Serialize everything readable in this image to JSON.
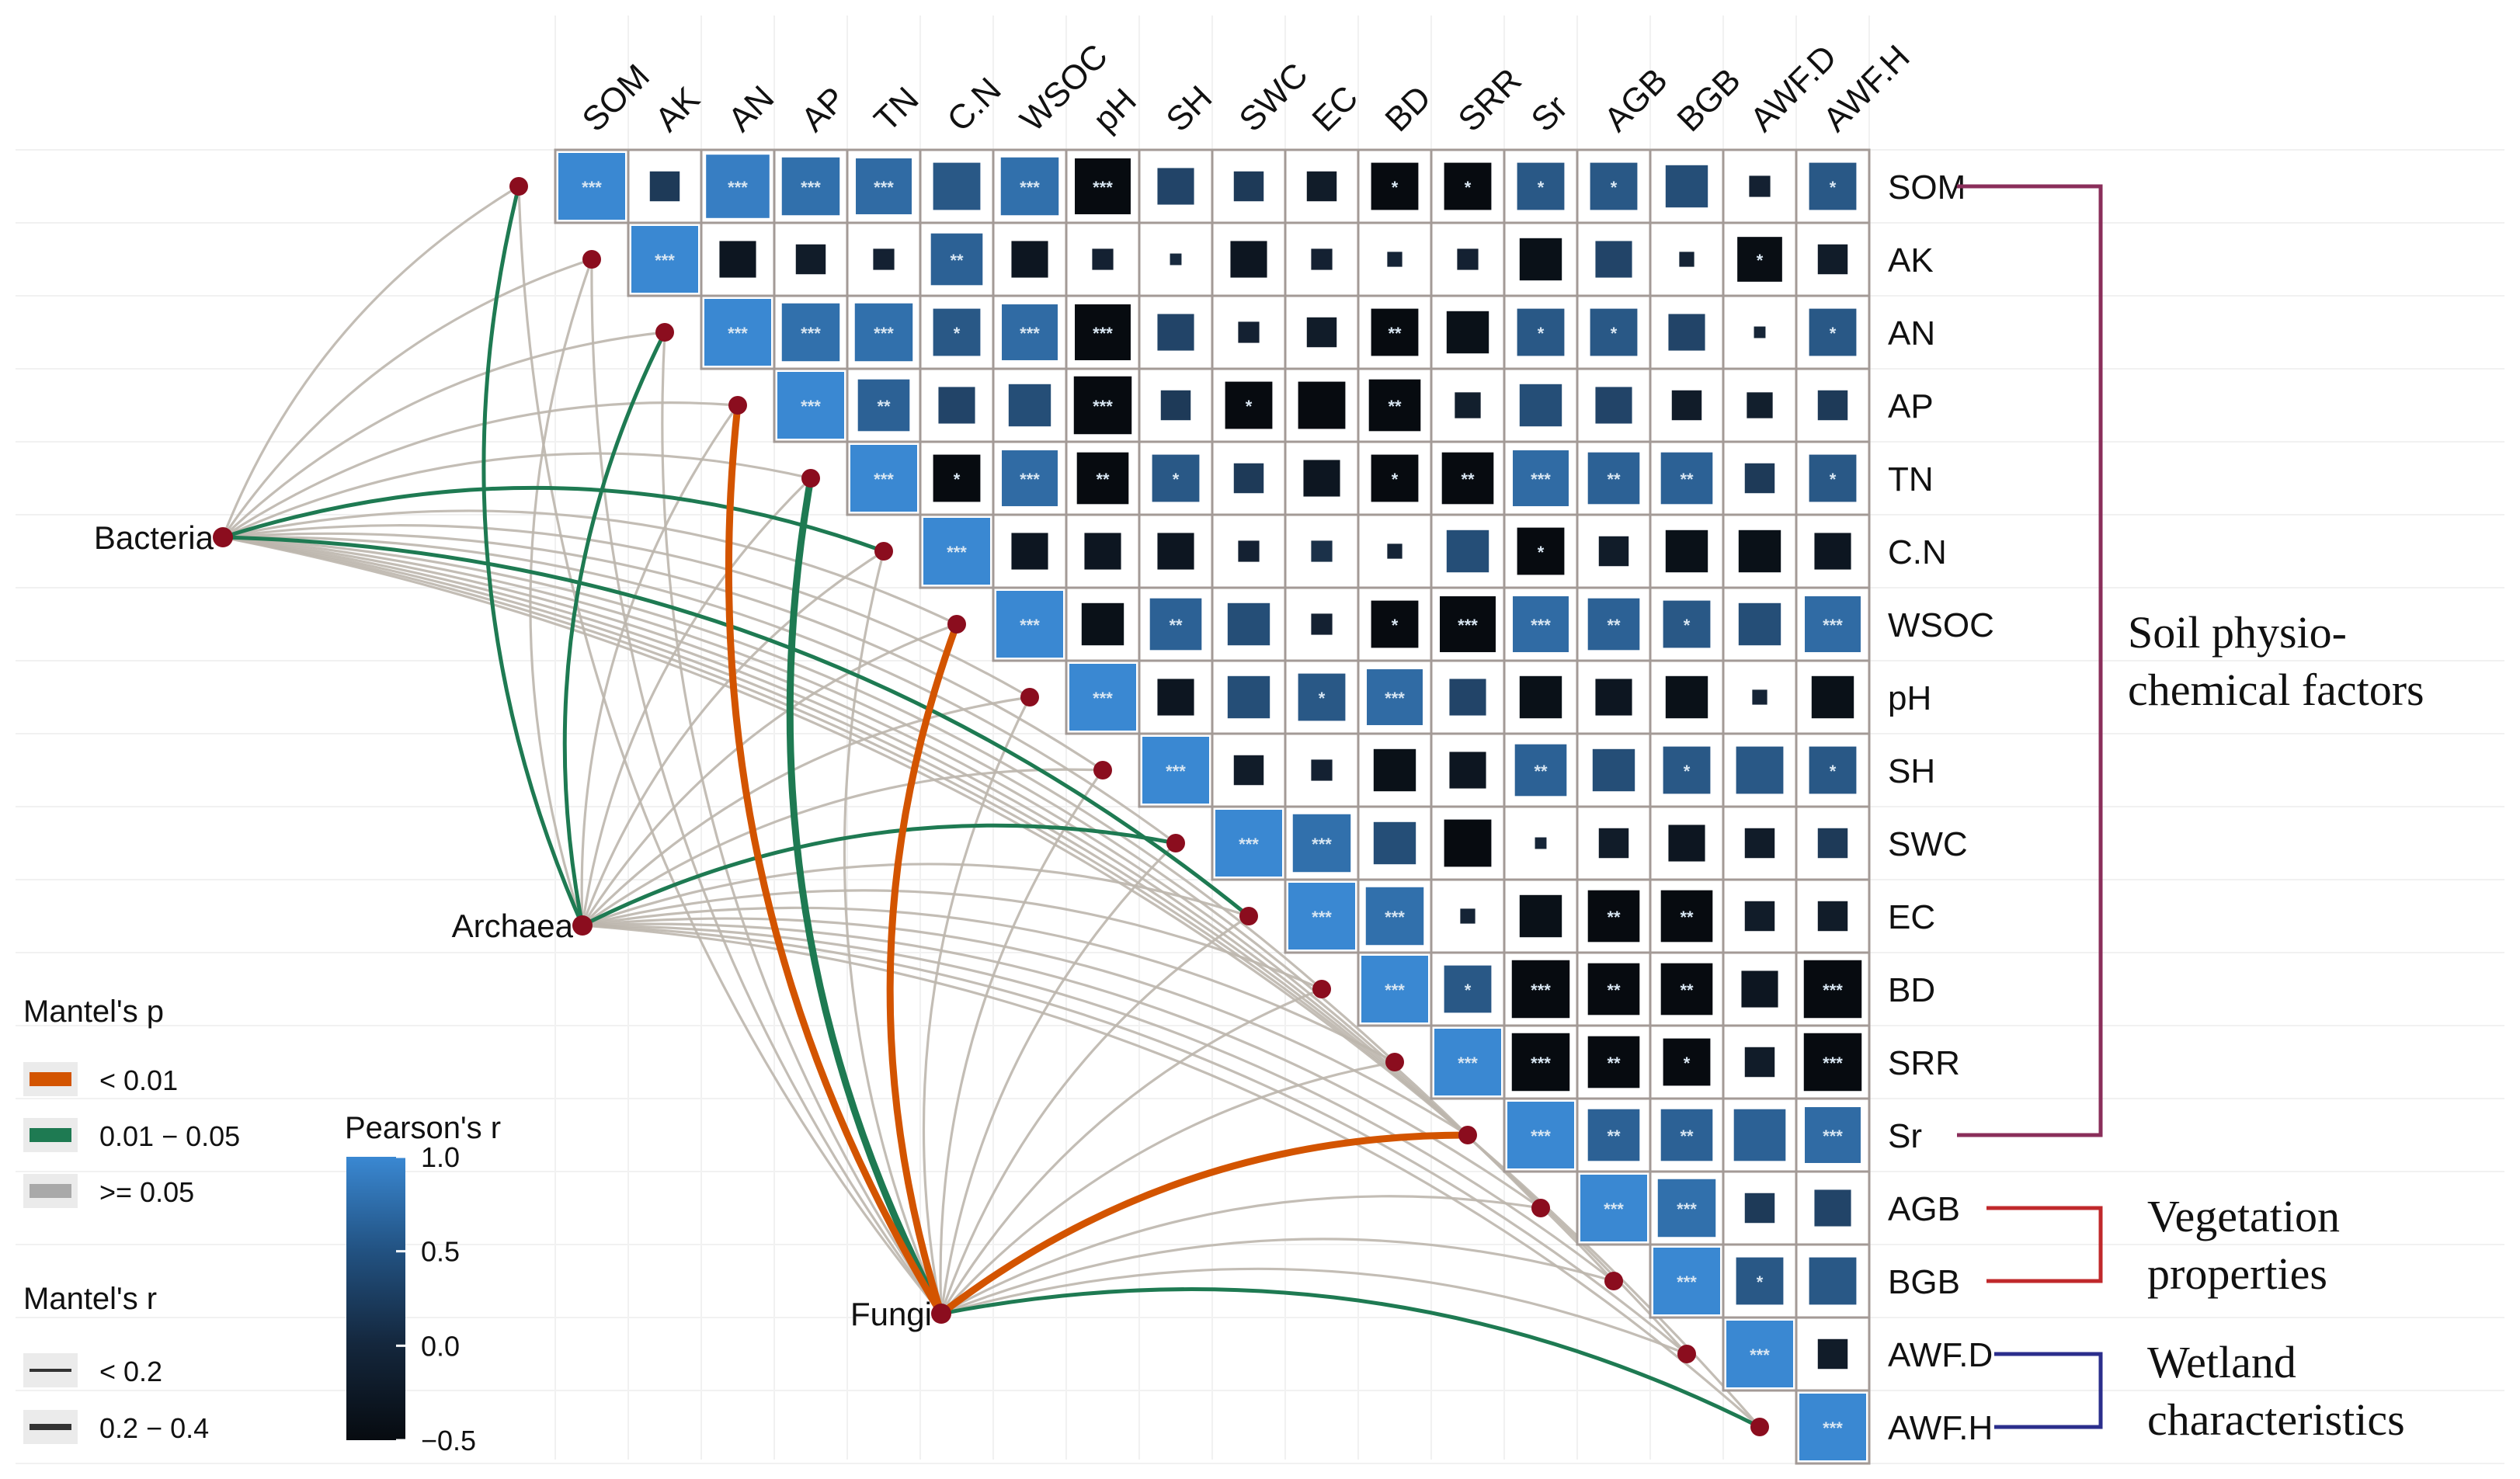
{
  "chart_data": {
    "type": "heatmap",
    "title": "",
    "variables": [
      "SOM",
      "AK",
      "AN",
      "AP",
      "TN",
      "C.N",
      "WSOC",
      "pH",
      "SH",
      "SWC",
      "EC",
      "BD",
      "SRR",
      "Sr",
      "AGB",
      "BGB",
      "AWF.D",
      "AWF.H"
    ],
    "cells": [
      {
        "row": "SOM",
        "col": "SOM",
        "r": 1.0,
        "sig": "***"
      },
      {
        "row": "SOM",
        "col": "AK",
        "r": 0.2,
        "sig": ""
      },
      {
        "row": "SOM",
        "col": "AN",
        "r": 0.9,
        "sig": "***"
      },
      {
        "row": "SOM",
        "col": "AP",
        "r": 0.75,
        "sig": "***"
      },
      {
        "row": "SOM",
        "col": "TN",
        "r": 0.7,
        "sig": "***"
      },
      {
        "row": "SOM",
        "col": "C.N",
        "r": 0.5,
        "sig": ""
      },
      {
        "row": "SOM",
        "col": "WSOC",
        "r": 0.75,
        "sig": "***"
      },
      {
        "row": "SOM",
        "col": "pH",
        "r": -0.7,
        "sig": "***"
      },
      {
        "row": "SOM",
        "col": "SH",
        "r": 0.3,
        "sig": ""
      },
      {
        "row": "SOM",
        "col": "SWC",
        "r": 0.2,
        "sig": ""
      },
      {
        "row": "SOM",
        "col": "EC",
        "r": -0.2,
        "sig": ""
      },
      {
        "row": "SOM",
        "col": "BD",
        "r": -0.5,
        "sig": "*"
      },
      {
        "row": "SOM",
        "col": "SRR",
        "r": -0.5,
        "sig": "*"
      },
      {
        "row": "SOM",
        "col": "Sr",
        "r": 0.5,
        "sig": "*"
      },
      {
        "row": "SOM",
        "col": "AGB",
        "r": 0.5,
        "sig": "*"
      },
      {
        "row": "SOM",
        "col": "BGB",
        "r": 0.4,
        "sig": ""
      },
      {
        "row": "SOM",
        "col": "AWF.D",
        "r": -0.1,
        "sig": ""
      },
      {
        "row": "SOM",
        "col": "AWF.H",
        "r": 0.5,
        "sig": "*"
      },
      {
        "row": "AK",
        "col": "AK",
        "r": 1.0,
        "sig": "***"
      },
      {
        "row": "AK",
        "col": "AN",
        "r": -0.3,
        "sig": ""
      },
      {
        "row": "AK",
        "col": "AP",
        "r": -0.2,
        "sig": ""
      },
      {
        "row": "AK",
        "col": "TN",
        "r": -0.1,
        "sig": ""
      },
      {
        "row": "AK",
        "col": "C.N",
        "r": 0.6,
        "sig": "**"
      },
      {
        "row": "AK",
        "col": "WSOC",
        "r": -0.3,
        "sig": ""
      },
      {
        "row": "AK",
        "col": "pH",
        "r": -0.1,
        "sig": ""
      },
      {
        "row": "AK",
        "col": "SH",
        "r": 0.03,
        "sig": ""
      },
      {
        "row": "AK",
        "col": "SWC",
        "r": -0.3,
        "sig": ""
      },
      {
        "row": "AK",
        "col": "EC",
        "r": -0.1,
        "sig": ""
      },
      {
        "row": "AK",
        "col": "BD",
        "r": -0.05,
        "sig": ""
      },
      {
        "row": "AK",
        "col": "SRR",
        "r": -0.1,
        "sig": ""
      },
      {
        "row": "AK",
        "col": "Sr",
        "r": -0.4,
        "sig": ""
      },
      {
        "row": "AK",
        "col": "AGB",
        "r": 0.3,
        "sig": ""
      },
      {
        "row": "AK",
        "col": "BGB",
        "r": -0.05,
        "sig": ""
      },
      {
        "row": "AK",
        "col": "AWF.D",
        "r": -0.45,
        "sig": "*"
      },
      {
        "row": "AK",
        "col": "AWF.H",
        "r": -0.2,
        "sig": ""
      },
      {
        "row": "AN",
        "col": "AN",
        "r": 1.0,
        "sig": "***"
      },
      {
        "row": "AN",
        "col": "AP",
        "r": 0.75,
        "sig": "***"
      },
      {
        "row": "AN",
        "col": "TN",
        "r": 0.75,
        "sig": "***"
      },
      {
        "row": "AN",
        "col": "C.N",
        "r": 0.5,
        "sig": "*"
      },
      {
        "row": "AN",
        "col": "WSOC",
        "r": 0.7,
        "sig": "***"
      },
      {
        "row": "AN",
        "col": "pH",
        "r": -0.7,
        "sig": "***"
      },
      {
        "row": "AN",
        "col": "SH",
        "r": 0.3,
        "sig": ""
      },
      {
        "row": "AN",
        "col": "SWC",
        "r": -0.1,
        "sig": ""
      },
      {
        "row": "AN",
        "col": "EC",
        "r": -0.2,
        "sig": ""
      },
      {
        "row": "AN",
        "col": "BD",
        "r": -0.5,
        "sig": "**"
      },
      {
        "row": "AN",
        "col": "SRR",
        "r": -0.4,
        "sig": ""
      },
      {
        "row": "AN",
        "col": "Sr",
        "r": 0.5,
        "sig": "*"
      },
      {
        "row": "AN",
        "col": "AGB",
        "r": 0.5,
        "sig": "*"
      },
      {
        "row": "AN",
        "col": "BGB",
        "r": 0.3,
        "sig": ""
      },
      {
        "row": "AN",
        "col": "AWF.D",
        "r": -0.03,
        "sig": ""
      },
      {
        "row": "AN",
        "col": "AWF.H",
        "r": 0.5,
        "sig": "*"
      },
      {
        "row": "AP",
        "col": "AP",
        "r": 1.0,
        "sig": "***"
      },
      {
        "row": "AP",
        "col": "TN",
        "r": 0.6,
        "sig": "**"
      },
      {
        "row": "AP",
        "col": "C.N",
        "r": 0.3,
        "sig": ""
      },
      {
        "row": "AP",
        "col": "WSOC",
        "r": 0.4,
        "sig": ""
      },
      {
        "row": "AP",
        "col": "pH",
        "r": -0.75,
        "sig": "***"
      },
      {
        "row": "AP",
        "col": "SH",
        "r": 0.2,
        "sig": ""
      },
      {
        "row": "AP",
        "col": "SWC",
        "r": -0.5,
        "sig": "*"
      },
      {
        "row": "AP",
        "col": "EC",
        "r": -0.5,
        "sig": ""
      },
      {
        "row": "AP",
        "col": "BD",
        "r": -0.6,
        "sig": "**"
      },
      {
        "row": "AP",
        "col": "SRR",
        "r": -0.15,
        "sig": ""
      },
      {
        "row": "AP",
        "col": "Sr",
        "r": 0.4,
        "sig": ""
      },
      {
        "row": "AP",
        "col": "AGB",
        "r": 0.3,
        "sig": ""
      },
      {
        "row": "AP",
        "col": "BGB",
        "r": -0.2,
        "sig": ""
      },
      {
        "row": "AP",
        "col": "AWF.D",
        "r": -0.15,
        "sig": ""
      },
      {
        "row": "AP",
        "col": "AWF.H",
        "r": 0.2,
        "sig": ""
      },
      {
        "row": "TN",
        "col": "TN",
        "r": 1.0,
        "sig": "***"
      },
      {
        "row": "TN",
        "col": "C.N",
        "r": -0.5,
        "sig": "*"
      },
      {
        "row": "TN",
        "col": "WSOC",
        "r": 0.7,
        "sig": "***"
      },
      {
        "row": "TN",
        "col": "pH",
        "r": -0.6,
        "sig": "**"
      },
      {
        "row": "TN",
        "col": "SH",
        "r": 0.5,
        "sig": "*"
      },
      {
        "row": "TN",
        "col": "SWC",
        "r": 0.2,
        "sig": ""
      },
      {
        "row": "TN",
        "col": "EC",
        "r": -0.3,
        "sig": ""
      },
      {
        "row": "TN",
        "col": "BD",
        "r": -0.5,
        "sig": "*"
      },
      {
        "row": "TN",
        "col": "SRR",
        "r": -0.6,
        "sig": "**"
      },
      {
        "row": "TN",
        "col": "Sr",
        "r": 0.7,
        "sig": "***"
      },
      {
        "row": "TN",
        "col": "AGB",
        "r": 0.6,
        "sig": "**"
      },
      {
        "row": "TN",
        "col": "BGB",
        "r": 0.6,
        "sig": "**"
      },
      {
        "row": "TN",
        "col": "AWF.D",
        "r": 0.2,
        "sig": ""
      },
      {
        "row": "TN",
        "col": "AWF.H",
        "r": 0.5,
        "sig": "*"
      },
      {
        "row": "C.N",
        "col": "C.N",
        "r": 1.0,
        "sig": "***"
      },
      {
        "row": "C.N",
        "col": "WSOC",
        "r": -0.3,
        "sig": ""
      },
      {
        "row": "C.N",
        "col": "pH",
        "r": -0.3,
        "sig": ""
      },
      {
        "row": "C.N",
        "col": "SH",
        "r": -0.3,
        "sig": ""
      },
      {
        "row": "C.N",
        "col": "SWC",
        "r": -0.1,
        "sig": ""
      },
      {
        "row": "C.N",
        "col": "EC",
        "r": 0.1,
        "sig": ""
      },
      {
        "row": "C.N",
        "col": "BD",
        "r": -0.05,
        "sig": ""
      },
      {
        "row": "C.N",
        "col": "SRR",
        "r": 0.4,
        "sig": ""
      },
      {
        "row": "C.N",
        "col": "Sr",
        "r": -0.5,
        "sig": "*"
      },
      {
        "row": "C.N",
        "col": "AGB",
        "r": -0.2,
        "sig": ""
      },
      {
        "row": "C.N",
        "col": "BGB",
        "r": -0.4,
        "sig": ""
      },
      {
        "row": "C.N",
        "col": "AWF.D",
        "r": -0.4,
        "sig": ""
      },
      {
        "row": "C.N",
        "col": "AWF.H",
        "r": -0.3,
        "sig": ""
      },
      {
        "row": "WSOC",
        "col": "WSOC",
        "r": 1.0,
        "sig": "***"
      },
      {
        "row": "WSOC",
        "col": "pH",
        "r": -0.4,
        "sig": ""
      },
      {
        "row": "WSOC",
        "col": "SH",
        "r": 0.6,
        "sig": "**"
      },
      {
        "row": "WSOC",
        "col": "SWC",
        "r": 0.4,
        "sig": ""
      },
      {
        "row": "WSOC",
        "col": "EC",
        "r": -0.1,
        "sig": ""
      },
      {
        "row": "WSOC",
        "col": "BD",
        "r": -0.5,
        "sig": "*"
      },
      {
        "row": "WSOC",
        "col": "SRR",
        "r": -0.7,
        "sig": "***"
      },
      {
        "row": "WSOC",
        "col": "Sr",
        "r": 0.7,
        "sig": "***"
      },
      {
        "row": "WSOC",
        "col": "AGB",
        "r": 0.6,
        "sig": "**"
      },
      {
        "row": "WSOC",
        "col": "BGB",
        "r": 0.5,
        "sig": "*"
      },
      {
        "row": "WSOC",
        "col": "AWF.D",
        "r": 0.4,
        "sig": ""
      },
      {
        "row": "WSOC",
        "col": "AWF.H",
        "r": 0.7,
        "sig": "***"
      },
      {
        "row": "pH",
        "col": "pH",
        "r": 1.0,
        "sig": "***"
      },
      {
        "row": "pH",
        "col": "SH",
        "r": -0.3,
        "sig": ""
      },
      {
        "row": "pH",
        "col": "SWC",
        "r": 0.4,
        "sig": ""
      },
      {
        "row": "pH",
        "col": "EC",
        "r": 0.5,
        "sig": "*"
      },
      {
        "row": "pH",
        "col": "BD",
        "r": 0.7,
        "sig": "***"
      },
      {
        "row": "pH",
        "col": "SRR",
        "r": 0.3,
        "sig": ""
      },
      {
        "row": "pH",
        "col": "Sr",
        "r": -0.4,
        "sig": ""
      },
      {
        "row": "pH",
        "col": "AGB",
        "r": -0.3,
        "sig": ""
      },
      {
        "row": "pH",
        "col": "BGB",
        "r": -0.4,
        "sig": ""
      },
      {
        "row": "pH",
        "col": "AWF.D",
        "r": -0.05,
        "sig": ""
      },
      {
        "row": "pH",
        "col": "AWF.H",
        "r": -0.4,
        "sig": ""
      },
      {
        "row": "SH",
        "col": "SH",
        "r": 1.0,
        "sig": "***"
      },
      {
        "row": "SH",
        "col": "SWC",
        "r": -0.2,
        "sig": ""
      },
      {
        "row": "SH",
        "col": "EC",
        "r": -0.1,
        "sig": ""
      },
      {
        "row": "SH",
        "col": "BD",
        "r": -0.4,
        "sig": ""
      },
      {
        "row": "SH",
        "col": "SRR",
        "r": -0.3,
        "sig": ""
      },
      {
        "row": "SH",
        "col": "Sr",
        "r": 0.6,
        "sig": "**"
      },
      {
        "row": "SH",
        "col": "AGB",
        "r": 0.4,
        "sig": ""
      },
      {
        "row": "SH",
        "col": "BGB",
        "r": 0.5,
        "sig": "*"
      },
      {
        "row": "SH",
        "col": "AWF.D",
        "r": 0.5,
        "sig": ""
      },
      {
        "row": "SH",
        "col": "AWF.H",
        "r": 0.5,
        "sig": "*"
      },
      {
        "row": "SWC",
        "col": "SWC",
        "r": 1.0,
        "sig": "***"
      },
      {
        "row": "SWC",
        "col": "EC",
        "r": 0.75,
        "sig": "***"
      },
      {
        "row": "SWC",
        "col": "BD",
        "r": 0.4,
        "sig": ""
      },
      {
        "row": "SWC",
        "col": "SRR",
        "r": -0.5,
        "sig": ""
      },
      {
        "row": "SWC",
        "col": "Sr",
        "r": -0.03,
        "sig": ""
      },
      {
        "row": "SWC",
        "col": "AGB",
        "r": -0.2,
        "sig": ""
      },
      {
        "row": "SWC",
        "col": "BGB",
        "r": -0.3,
        "sig": ""
      },
      {
        "row": "SWC",
        "col": "AWF.D",
        "r": -0.2,
        "sig": ""
      },
      {
        "row": "SWC",
        "col": "AWF.H",
        "r": 0.2,
        "sig": ""
      },
      {
        "row": "EC",
        "col": "EC",
        "r": 1.0,
        "sig": "***"
      },
      {
        "row": "EC",
        "col": "BD",
        "r": 0.75,
        "sig": "***"
      },
      {
        "row": "EC",
        "col": "SRR",
        "r": -0.05,
        "sig": ""
      },
      {
        "row": "EC",
        "col": "Sr",
        "r": -0.4,
        "sig": ""
      },
      {
        "row": "EC",
        "col": "AGB",
        "r": -0.6,
        "sig": "**"
      },
      {
        "row": "EC",
        "col": "BGB",
        "r": -0.6,
        "sig": "**"
      },
      {
        "row": "EC",
        "col": "AWF.D",
        "r": -0.2,
        "sig": ""
      },
      {
        "row": "EC",
        "col": "AWF.H",
        "r": -0.2,
        "sig": ""
      },
      {
        "row": "BD",
        "col": "BD",
        "r": 1.0,
        "sig": "***"
      },
      {
        "row": "BD",
        "col": "SRR",
        "r": 0.5,
        "sig": "*"
      },
      {
        "row": "BD",
        "col": "Sr",
        "r": -0.75,
        "sig": "***"
      },
      {
        "row": "BD",
        "col": "AGB",
        "r": -0.6,
        "sig": "**"
      },
      {
        "row": "BD",
        "col": "BGB",
        "r": -0.6,
        "sig": "**"
      },
      {
        "row": "BD",
        "col": "AWF.D",
        "r": -0.3,
        "sig": ""
      },
      {
        "row": "BD",
        "col": "AWF.H",
        "r": -0.75,
        "sig": "***"
      },
      {
        "row": "SRR",
        "col": "SRR",
        "r": 1.0,
        "sig": "***"
      },
      {
        "row": "SRR",
        "col": "Sr",
        "r": -0.75,
        "sig": "***"
      },
      {
        "row": "SRR",
        "col": "AGB",
        "r": -0.6,
        "sig": "**"
      },
      {
        "row": "SRR",
        "col": "BGB",
        "r": -0.5,
        "sig": "*"
      },
      {
        "row": "SRR",
        "col": "AWF.D",
        "r": -0.2,
        "sig": ""
      },
      {
        "row": "SRR",
        "col": "AWF.H",
        "r": -0.75,
        "sig": "***"
      },
      {
        "row": "Sr",
        "col": "Sr",
        "r": 1.0,
        "sig": "***"
      },
      {
        "row": "Sr",
        "col": "AGB",
        "r": 0.6,
        "sig": "**"
      },
      {
        "row": "Sr",
        "col": "BGB",
        "r": 0.6,
        "sig": "**"
      },
      {
        "row": "Sr",
        "col": "AWF.D",
        "r": 0.6,
        "sig": ""
      },
      {
        "row": "Sr",
        "col": "AWF.H",
        "r": 0.7,
        "sig": "***"
      },
      {
        "row": "AGB",
        "col": "AGB",
        "r": 1.0,
        "sig": "***"
      },
      {
        "row": "AGB",
        "col": "BGB",
        "r": 0.75,
        "sig": "***"
      },
      {
        "row": "AGB",
        "col": "AWF.D",
        "r": 0.2,
        "sig": ""
      },
      {
        "row": "AGB",
        "col": "AWF.H",
        "r": 0.3,
        "sig": ""
      },
      {
        "row": "BGB",
        "col": "BGB",
        "r": 1.0,
        "sig": "***"
      },
      {
        "row": "BGB",
        "col": "AWF.D",
        "r": 0.5,
        "sig": "*"
      },
      {
        "row": "BGB",
        "col": "AWF.H",
        "r": 0.5,
        "sig": ""
      },
      {
        "row": "AWF.D",
        "col": "AWF.D",
        "r": 1.0,
        "sig": "***"
      },
      {
        "row": "AWF.D",
        "col": "AWF.H",
        "r": -0.2,
        "sig": ""
      },
      {
        "row": "AWF.H",
        "col": "AWF.H",
        "r": 1.0,
        "sig": "***"
      }
    ],
    "colorbar": {
      "title": "Pearson's r",
      "range": [
        -0.5,
        1.0
      ],
      "ticks": [
        "1.0",
        "0.5",
        "0.0",
        "−0.5"
      ]
    },
    "groups": [
      {
        "label_lines": [
          "Soil physio-",
          "chemical factors"
        ],
        "from": "SOM",
        "to": "Sr",
        "color": "#8a2e5a"
      },
      {
        "label_lines": [
          "Vegetation",
          "properties"
        ],
        "from": "AGB",
        "to": "BGB",
        "color": "#c0282b"
      },
      {
        "label_lines": [
          "Wetland",
          "characteristics"
        ],
        "from": "AWF.D",
        "to": "AWF.H",
        "color": "#2b2e8c"
      }
    ],
    "mantel": {
      "nodes": [
        {
          "name": "Bacteria",
          "label": "Bacteria"
        },
        {
          "name": "Archaea",
          "label": "Archaea"
        },
        {
          "name": "Fungi",
          "label": "Fungi"
        }
      ],
      "links": {
        "Bacteria": {
          "C.N": "0.01-0.05",
          "EC": "0.01-0.05"
        },
        "Archaea": {
          "SOM": "0.01-0.05",
          "AN": "0.01-0.05",
          "SWC": "0.01-0.05"
        },
        "Fungi": {
          "AP": "<0.01",
          "WSOC": "<0.01",
          "Sr": "<0.01",
          "TN": "0.01-0.05",
          "AWF.H": "0.01-0.05"
        }
      },
      "strong": [
        "Fungi-AP",
        "Fungi-WSOC",
        "Fungi-Sr",
        "Fungi-TN"
      ]
    },
    "legend_p": {
      "title": "Mantel's p",
      "items": [
        {
          "label": "< 0.01",
          "color": "#d35400"
        },
        {
          "label": "0.01 − 0.05",
          "color": "#1e7a52"
        },
        {
          "label": ">= 0.05",
          "color": "#a9a9a9"
        }
      ]
    },
    "legend_r": {
      "title": "Mantel's r",
      "items": [
        {
          "label": "< 0.2"
        },
        {
          "label": "0.2 − 0.4"
        }
      ]
    }
  },
  "colors": {
    "pos": "#3a88d2",
    "zero": "#17273a",
    "neg": "#070b10",
    "grid": "#a39a96",
    "node": "#8b0d1e",
    "p_lt_001": "#d35400",
    "p_001_005": "#1e7a52",
    "p_ge_005": "#bdb6ad"
  }
}
